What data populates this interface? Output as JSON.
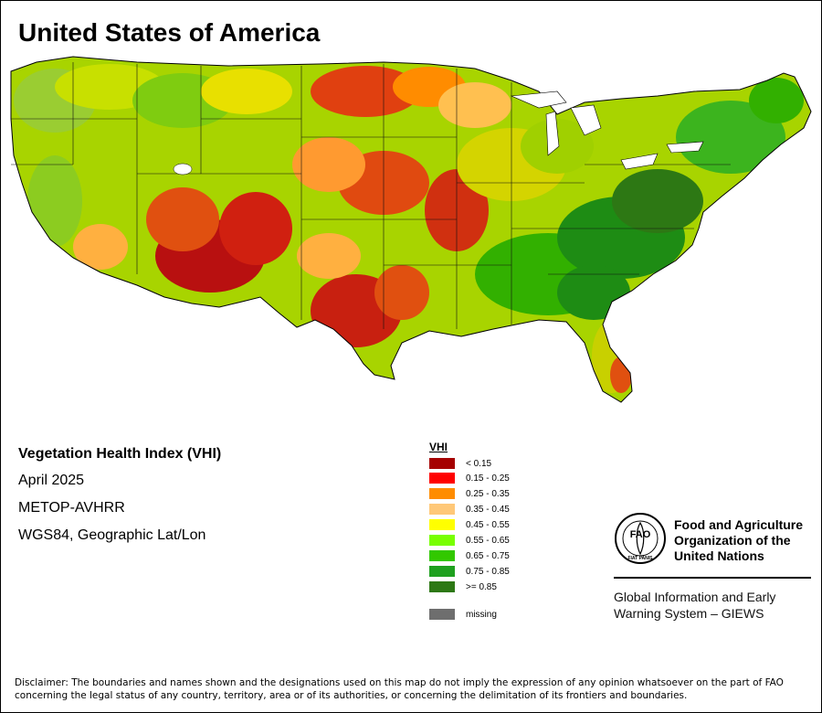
{
  "title": "United States of America",
  "info": {
    "index_name": "Vegetation Health Index (VHI)",
    "period": "April 2025",
    "sensor": "METOP-AVHRR",
    "projection": "WGS84, Geographic Lat/Lon"
  },
  "legend": {
    "title": "VHI",
    "items": [
      {
        "label": "< 0.15",
        "color": "#a50000"
      },
      {
        "label": "0.15 - 0.25",
        "color": "#ff0000"
      },
      {
        "label": "0.25 - 0.35",
        "color": "#ff8c00"
      },
      {
        "label": "0.35 - 0.45",
        "color": "#ffc878"
      },
      {
        "label": "0.45 - 0.55",
        "color": "#ffff00"
      },
      {
        "label": "0.55 - 0.65",
        "color": "#78ff00"
      },
      {
        "label": "0.65 - 0.75",
        "color": "#32c800"
      },
      {
        "label": "0.75 - 0.85",
        "color": "#1ea01e"
      },
      {
        "label": ">= 0.85",
        "color": "#2d7814"
      }
    ],
    "missing": {
      "label": "missing",
      "color": "#6e6e6e"
    }
  },
  "org": {
    "logo_text": "FAO",
    "logo_motto": "FIAT PANIS",
    "name_line1": "Food and Agriculture",
    "name_line2": "Organization of the",
    "name_line3": "United Nations",
    "system_line1": "Global Information and Early",
    "system_line2": "Warning System – GIEWS"
  },
  "disclaimer_line1": "Disclaimer: The boundaries and names shown and the designations used on this map do not imply the expression of any opinion whatsoever on the part of FAO",
  "disclaimer_line2": "concerning the legal status of any country, territory, area or of its authorities, or concerning the delimitation of its frontiers and boundaries."
}
